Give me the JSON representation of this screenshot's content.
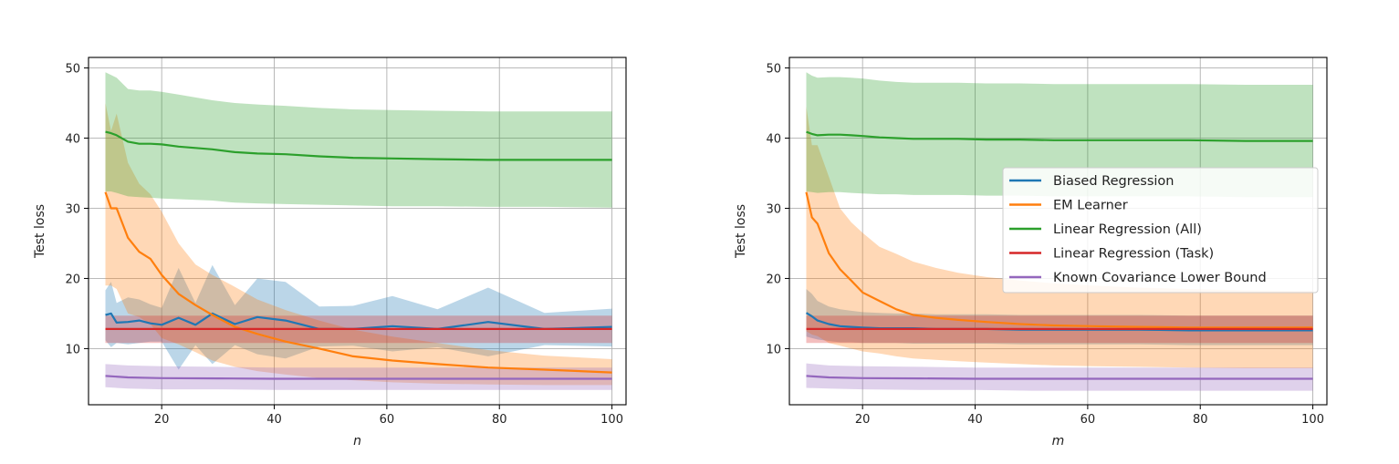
{
  "chart_data": [
    {
      "type": "line",
      "xlabel": "n",
      "ylabel": "Test loss",
      "xlim": [
        7,
        102.5
      ],
      "ylim": [
        2,
        51.5
      ],
      "xticks": [
        20,
        40,
        60,
        80,
        100
      ],
      "yticks": [
        10,
        20,
        30,
        40,
        50
      ],
      "grid": true,
      "legend": null,
      "series": [
        {
          "name": "Biased Regression",
          "color": "#1f77b4",
          "x": [
            10,
            11,
            12,
            14,
            16,
            18,
            20,
            23,
            26,
            29,
            33,
            37,
            42,
            48,
            54,
            61,
            69,
            78,
            88,
            100
          ],
          "y": [
            14.8,
            15.0,
            13.7,
            13.8,
            14.0,
            13.6,
            13.4,
            14.4,
            13.4,
            15.0,
            13.5,
            14.5,
            14.0,
            12.8,
            12.8,
            13.2,
            12.8,
            13.8,
            12.8,
            13.1
          ],
          "lower": [
            11.2,
            10.2,
            10.8,
            10.6,
            10.8,
            11.0,
            11.0,
            7.0,
            10.5,
            7.8,
            10.5,
            9.2,
            8.6,
            10.3,
            10.4,
            9.6,
            10.2,
            8.9,
            10.5,
            10.3
          ],
          "upper": [
            18.3,
            19.5,
            16.5,
            17.3,
            17.0,
            16.3,
            15.8,
            21.5,
            16.5,
            21.9,
            16.2,
            20.0,
            19.5,
            16.0,
            16.1,
            17.5,
            15.6,
            18.7,
            15.1,
            15.7
          ]
        },
        {
          "name": "EM Learner",
          "color": "#ff7f0e",
          "x": [
            10,
            11,
            12,
            14,
            16,
            18,
            20,
            23,
            26,
            29,
            33,
            37,
            42,
            48,
            54,
            61,
            69,
            78,
            88,
            100
          ],
          "y": [
            32.3,
            30.0,
            30.0,
            25.8,
            23.8,
            22.8,
            20.5,
            17.8,
            16.2,
            14.8,
            13.1,
            12.1,
            11.0,
            10.0,
            8.9,
            8.3,
            7.8,
            7.3,
            7.0,
            6.6
          ],
          "lower": [
            19.0,
            19.0,
            18.5,
            15.0,
            14.5,
            13.5,
            11.5,
            10.6,
            9.5,
            8.3,
            7.4,
            6.8,
            6.3,
            5.8,
            5.5,
            5.2,
            5.0,
            4.9,
            4.8,
            4.8
          ],
          "upper": [
            45.0,
            41.0,
            43.5,
            36.5,
            33.5,
            32.0,
            29.5,
            25.0,
            22.0,
            20.5,
            18.8,
            17.0,
            15.5,
            14.0,
            12.7,
            11.7,
            10.8,
            9.8,
            9.0,
            8.5
          ]
        },
        {
          "name": "Linear Regression (All)",
          "color": "#2ca02c",
          "x": [
            10,
            11,
            12,
            14,
            16,
            18,
            20,
            23,
            26,
            29,
            33,
            37,
            42,
            48,
            54,
            61,
            69,
            78,
            88,
            100
          ],
          "y": [
            40.9,
            40.7,
            40.4,
            39.5,
            39.2,
            39.2,
            39.1,
            38.8,
            38.6,
            38.4,
            38.0,
            37.8,
            37.7,
            37.4,
            37.2,
            37.1,
            37.0,
            36.9,
            36.9,
            36.9
          ],
          "lower": [
            32.4,
            32.4,
            32.2,
            31.7,
            31.6,
            31.5,
            31.4,
            31.3,
            31.2,
            31.1,
            30.8,
            30.7,
            30.6,
            30.5,
            30.4,
            30.3,
            30.3,
            30.2,
            30.2,
            30.1
          ],
          "upper": [
            49.4,
            49.0,
            48.6,
            47.0,
            46.8,
            46.8,
            46.6,
            46.2,
            45.8,
            45.4,
            45.0,
            44.8,
            44.6,
            44.3,
            44.1,
            44.0,
            43.9,
            43.8,
            43.8,
            43.8
          ]
        },
        {
          "name": "Linear Regression (Task)",
          "color": "#d62728",
          "x": [
            10,
            100
          ],
          "y": [
            12.8,
            12.8
          ],
          "lower": [
            10.8,
            10.8
          ],
          "upper": [
            14.7,
            14.7
          ]
        },
        {
          "name": "Known Covariance Lower Bound",
          "color": "#9467bd",
          "x": [
            10,
            14,
            20,
            30,
            40,
            50,
            60,
            70,
            80,
            90,
            100
          ],
          "y": [
            6.1,
            5.9,
            5.8,
            5.75,
            5.7,
            5.7,
            5.7,
            5.7,
            5.7,
            5.7,
            5.7
          ],
          "lower": [
            4.5,
            4.3,
            4.2,
            4.2,
            4.1,
            4.1,
            4.1,
            4.1,
            4.1,
            4.1,
            4.1
          ],
          "upper": [
            7.8,
            7.6,
            7.5,
            7.4,
            7.3,
            7.3,
            7.3,
            7.3,
            7.3,
            7.3,
            7.3
          ]
        }
      ]
    },
    {
      "type": "line",
      "xlabel": "m",
      "ylabel": "Test loss",
      "xlim": [
        7,
        102.5
      ],
      "ylim": [
        2,
        51.5
      ],
      "xticks": [
        20,
        40,
        60,
        80,
        100
      ],
      "yticks": [
        10,
        20,
        30,
        40,
        50
      ],
      "grid": true,
      "legend": "center-right",
      "series": [
        {
          "name": "Biased Regression",
          "color": "#1f77b4",
          "x": [
            10,
            11,
            12,
            14,
            16,
            18,
            20,
            23,
            26,
            29,
            33,
            37,
            42,
            48,
            54,
            61,
            69,
            78,
            88,
            100
          ],
          "y": [
            15.1,
            14.6,
            14.0,
            13.5,
            13.2,
            13.1,
            13.0,
            12.9,
            12.9,
            12.9,
            12.8,
            12.8,
            12.8,
            12.7,
            12.7,
            12.7,
            12.7,
            12.6,
            12.6,
            12.6
          ],
          "lower": [
            11.7,
            11.5,
            11.3,
            11.1,
            10.9,
            10.9,
            10.8,
            10.8,
            10.8,
            10.7,
            10.7,
            10.7,
            10.7,
            10.6,
            10.6,
            10.6,
            10.6,
            10.5,
            10.5,
            10.5
          ],
          "upper": [
            18.5,
            17.8,
            16.8,
            16.0,
            15.6,
            15.4,
            15.2,
            15.1,
            15.0,
            15.0,
            14.9,
            14.9,
            14.9,
            14.8,
            14.8,
            14.8,
            14.8,
            14.7,
            14.7,
            14.7
          ]
        },
        {
          "name": "EM Learner",
          "color": "#ff7f0e",
          "x": [
            10,
            11,
            12,
            14,
            16,
            18,
            20,
            23,
            26,
            29,
            33,
            37,
            42,
            48,
            54,
            61,
            69,
            78,
            88,
            100
          ],
          "y": [
            32.3,
            28.7,
            27.8,
            23.6,
            21.3,
            19.7,
            18.0,
            16.8,
            15.6,
            14.8,
            14.4,
            14.1,
            13.8,
            13.5,
            13.3,
            13.2,
            13.1,
            13.0,
            13.0,
            13.0
          ],
          "lower": [
            12.5,
            12.0,
            11.8,
            10.8,
            10.4,
            10.0,
            9.6,
            9.3,
            8.9,
            8.6,
            8.4,
            8.2,
            8.0,
            7.8,
            7.6,
            7.5,
            7.4,
            7.3,
            7.2,
            7.2
          ],
          "upper": [
            44.5,
            39.0,
            39.0,
            34.5,
            30.0,
            28.0,
            26.5,
            24.5,
            23.5,
            22.4,
            21.5,
            20.8,
            20.2,
            19.7,
            19.3,
            19.0,
            18.7,
            18.5,
            18.3,
            18.2
          ]
        },
        {
          "name": "Linear Regression (All)",
          "color": "#2ca02c",
          "x": [
            10,
            11,
            12,
            14,
            16,
            18,
            20,
            23,
            26,
            29,
            33,
            37,
            42,
            48,
            54,
            61,
            69,
            78,
            88,
            100
          ],
          "y": [
            40.9,
            40.6,
            40.4,
            40.5,
            40.5,
            40.4,
            40.3,
            40.1,
            40.0,
            39.9,
            39.9,
            39.9,
            39.8,
            39.8,
            39.7,
            39.7,
            39.7,
            39.7,
            39.6,
            39.6
          ],
          "lower": [
            32.4,
            32.3,
            32.2,
            32.3,
            32.3,
            32.2,
            32.1,
            32.0,
            32.0,
            31.9,
            31.9,
            31.9,
            31.8,
            31.8,
            31.7,
            31.7,
            31.7,
            31.7,
            31.6,
            31.6
          ],
          "upper": [
            49.4,
            48.9,
            48.6,
            48.7,
            48.7,
            48.6,
            48.5,
            48.2,
            48.0,
            47.9,
            47.9,
            47.9,
            47.8,
            47.8,
            47.7,
            47.7,
            47.7,
            47.7,
            47.6,
            47.6
          ]
        },
        {
          "name": "Linear Regression (Task)",
          "color": "#d62728",
          "x": [
            10,
            100
          ],
          "y": [
            12.8,
            12.8
          ],
          "lower": [
            10.8,
            10.8
          ],
          "upper": [
            14.7,
            14.7
          ]
        },
        {
          "name": "Known Covariance Lower Bound",
          "color": "#9467bd",
          "x": [
            10,
            14,
            20,
            30,
            40,
            50,
            60,
            70,
            80,
            90,
            100
          ],
          "y": [
            6.1,
            5.9,
            5.8,
            5.75,
            5.7,
            5.7,
            5.7,
            5.7,
            5.7,
            5.7,
            5.7
          ],
          "lower": [
            4.4,
            4.3,
            4.2,
            4.1,
            4.1,
            4.0,
            4.0,
            4.0,
            4.0,
            4.0,
            4.0
          ],
          "upper": [
            7.9,
            7.6,
            7.5,
            7.4,
            7.3,
            7.3,
            7.3,
            7.3,
            7.3,
            7.3,
            7.3
          ]
        }
      ]
    }
  ]
}
